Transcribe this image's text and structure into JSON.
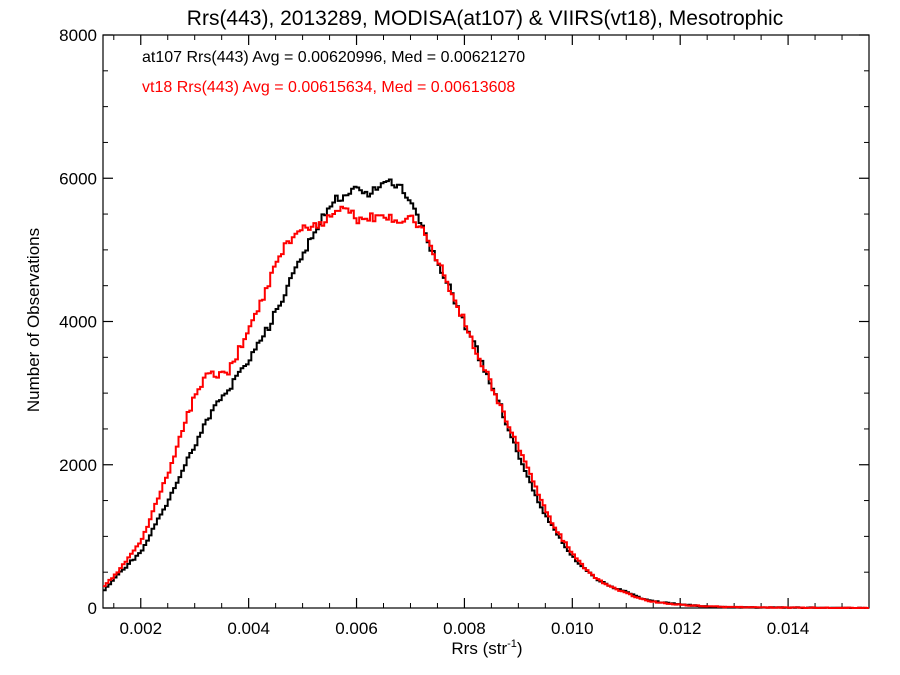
{
  "chart_data": {
    "type": "line",
    "title": "Rrs(443), 2013289, MODISA(at107) & VIIRS(vt18), Mesotrophic",
    "xlabel": "Rrs (str",
    "xlabel_superscript": "-1",
    "xlabel_suffix": ")",
    "ylabel": "Number of Observations",
    "xlim": [
      0.0013,
      0.0155
    ],
    "ylim": [
      0,
      8000
    ],
    "x_ticks": [
      0.002,
      0.004,
      0.006,
      0.008,
      0.01,
      0.012,
      0.014
    ],
    "x_tick_labels": [
      "0.002",
      "0.004",
      "0.006",
      "0.008",
      "0.010",
      "0.012",
      "0.014"
    ],
    "y_ticks": [
      0,
      2000,
      4000,
      6000,
      8000
    ],
    "y_tick_labels": [
      "0",
      "2000",
      "4000",
      "6000",
      "8000"
    ],
    "grid": false,
    "annotations": [
      "at107 Rrs(443) Avg = 0.00620996, Med = 0.00621270",
      "vt18 Rrs(443) Avg = 0.00615634, Med = 0.00613608"
    ],
    "series": [
      {
        "color": "#000000",
        "x": [
          0.0013,
          0.0016,
          0.002,
          0.0022,
          0.0025,
          0.0028,
          0.003,
          0.0032,
          0.0034,
          0.0036,
          0.0038,
          0.004,
          0.0042,
          0.0044,
          0.0046,
          0.0048,
          0.005,
          0.0052,
          0.0054,
          0.0056,
          0.0058,
          0.006,
          0.0062,
          0.0064,
          0.0066,
          0.0068,
          0.007,
          0.0072,
          0.0074,
          0.0076,
          0.0078,
          0.008,
          0.0082,
          0.0084,
          0.0086,
          0.0088,
          0.009,
          0.0092,
          0.0094,
          0.0096,
          0.0098,
          0.01,
          0.0102,
          0.0104,
          0.0106,
          0.0108,
          0.011,
          0.0112,
          0.0114,
          0.0116,
          0.0118,
          0.012,
          0.0122,
          0.0124,
          0.0126,
          0.0128,
          0.013,
          0.0135,
          0.014,
          0.0145,
          0.0155
        ],
        "values": [
          250,
          500,
          800,
          1100,
          1500,
          2000,
          2300,
          2600,
          2850,
          3050,
          3250,
          3500,
          3750,
          4000,
          4300,
          4650,
          4950,
          5250,
          5500,
          5700,
          5780,
          5850,
          5800,
          5900,
          5950,
          5850,
          5600,
          5300,
          4950,
          4650,
          4300,
          3950,
          3600,
          3250,
          2900,
          2500,
          2100,
          1750,
          1400,
          1150,
          900,
          700,
          550,
          420,
          330,
          270,
          220,
          150,
          110,
          80,
          65,
          50,
          35,
          25,
          20,
          15,
          10,
          8,
          5,
          3,
          0
        ]
      },
      {
        "color": "#ff0000",
        "x": [
          0.0013,
          0.0016,
          0.002,
          0.0022,
          0.0025,
          0.0028,
          0.003,
          0.0032,
          0.0034,
          0.0036,
          0.0038,
          0.004,
          0.0042,
          0.0044,
          0.0046,
          0.0048,
          0.005,
          0.0052,
          0.0054,
          0.0056,
          0.0058,
          0.006,
          0.0062,
          0.0064,
          0.0066,
          0.0068,
          0.007,
          0.0072,
          0.0074,
          0.0076,
          0.0078,
          0.008,
          0.0082,
          0.0084,
          0.0086,
          0.0088,
          0.009,
          0.0092,
          0.0094,
          0.0096,
          0.0098,
          0.01,
          0.0102,
          0.0104,
          0.0106,
          0.0108,
          0.011,
          0.0112,
          0.0114,
          0.0116,
          0.0118,
          0.012,
          0.0122,
          0.0124,
          0.0126,
          0.0128,
          0.013,
          0.0135,
          0.014,
          0.0145,
          0.0155
        ],
        "values": [
          300,
          550,
          950,
          1350,
          1900,
          2600,
          3000,
          3250,
          3250,
          3300,
          3600,
          3900,
          4250,
          4650,
          5000,
          5200,
          5300,
          5350,
          5400,
          5550,
          5600,
          5400,
          5450,
          5450,
          5450,
          5400,
          5450,
          5300,
          4950,
          4650,
          4300,
          3950,
          3600,
          3250,
          2900,
          2550,
          2200,
          1850,
          1500,
          1200,
          950,
          750,
          560,
          420,
          330,
          260,
          200,
          140,
          100,
          75,
          55,
          45,
          35,
          28,
          22,
          16,
          12,
          8,
          5,
          3,
          0
        ]
      }
    ]
  }
}
